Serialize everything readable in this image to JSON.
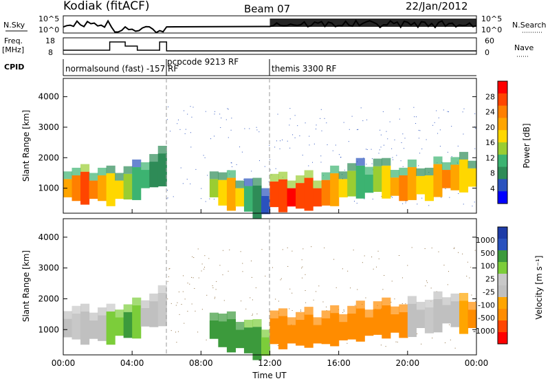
{
  "header": {
    "station": "Kodiak (fitACF)",
    "beam": "Beam 07",
    "date": "22/Jan/2012"
  },
  "strips": {
    "nsky_label": "N.Sky",
    "nsky_ticks": [
      "10^5",
      "10^0"
    ],
    "nsearch_label": "N.Search",
    "freq_label_1": "Freq.",
    "freq_label_2": "[MHz]",
    "freq_ticks": [
      "18",
      "8"
    ],
    "nave_label": "Nave",
    "nave_ticks": [
      "60",
      "0"
    ],
    "cpid_label": "CPID"
  },
  "modes": [
    {
      "label": "normalsound (fast) -157 RF",
      "start_hour": 0,
      "end_hour": 6
    },
    {
      "label": "pcpcode 9213 RF",
      "start_hour": 6,
      "end_hour": 12
    },
    {
      "label": "themis 3300 RF",
      "start_hour": 12,
      "end_hour": 24
    }
  ],
  "colors": {
    "power": [
      "#0000ff",
      "#2a52be",
      "#2e8b57",
      "#3cb371",
      "#9acd32",
      "#ffd700",
      "#ffa500",
      "#ff7f00",
      "#ff4500",
      "#ff0000"
    ],
    "velocity": [
      "#ff0000",
      "#ff4500",
      "#ff8c00",
      "#ffa500",
      "#c0c0c0",
      "#c8c8c8",
      "#7ccd3a",
      "#3c9a3c",
      "#2a52be",
      "#1e3ca8"
    ]
  },
  "chart_data": [
    {
      "type": "heatmap",
      "panel": "power",
      "ylabel": "Slant Range [km]",
      "ylim": [
        180,
        4600
      ],
      "yticks": [
        "4000",
        "3000",
        "2000",
        "1000"
      ],
      "colorbar_label": "Power [dB]",
      "colorbar_ticks": [
        "28",
        "24",
        "20",
        "16",
        "12",
        "8",
        "4"
      ],
      "colorbar_range": [
        0,
        32
      ],
      "x": [
        0,
        0.5,
        1,
        1.5,
        2,
        2.5,
        3,
        3.5,
        4,
        4.5,
        5,
        5.5,
        8.5,
        9,
        9.5,
        10,
        10.5,
        11,
        11.5,
        12,
        12.5,
        13,
        13.5,
        14,
        14.5,
        15,
        15.5,
        16,
        16.5,
        17,
        17.5,
        18,
        18.5,
        19,
        19.5,
        20,
        20.5,
        21,
        21.5,
        22,
        22.5,
        23,
        23.5
      ],
      "y_center_km": [
        1000,
        1000,
        1000,
        950,
        1000,
        950,
        950,
        1050,
        1150,
        1300,
        1450,
        1600,
        1000,
        850,
        800,
        700,
        650,
        550,
        450,
        800,
        750,
        700,
        750,
        800,
        700,
        850,
        950,
        1000,
        1150,
        1200,
        1150,
        1300,
        1200,
        1050,
        1000,
        1150,
        1100,
        1000,
        1250,
        1300,
        1350,
        1400,
        1350
      ],
      "values_db": [
        20,
        24,
        26,
        24,
        22,
        18,
        16,
        14,
        12,
        10,
        8,
        8,
        14,
        18,
        20,
        16,
        12,
        8,
        6,
        26,
        28,
        30,
        28,
        26,
        28,
        24,
        20,
        16,
        14,
        12,
        10,
        14,
        18,
        22,
        24,
        20,
        16,
        18,
        22,
        24,
        20,
        18,
        16
      ]
    },
    {
      "type": "heatmap",
      "panel": "velocity",
      "xlabel": "Time UT",
      "ylabel": "Slant Range [km]",
      "ylim": [
        180,
        4600
      ],
      "yticks": [
        "4000",
        "3000",
        "2000",
        "1000"
      ],
      "xticks": [
        "00:00",
        "04:00",
        "08:00",
        "12:00",
        "16:00",
        "20:00",
        "00:00"
      ],
      "xlim": [
        0,
        24
      ],
      "colorbar_label": "Velocity [m s⁻¹]",
      "colorbar_ticks": [
        "1000",
        "500",
        "100",
        "25",
        "-25",
        "-100",
        "-500",
        "-1000"
      ],
      "x": [
        0,
        0.5,
        1,
        1.5,
        2,
        2.5,
        3,
        3.5,
        4,
        4.5,
        5,
        5.5,
        8.5,
        9,
        9.5,
        10,
        10.5,
        11,
        11.5,
        12,
        12.5,
        13,
        13.5,
        14,
        14.5,
        15,
        15.5,
        16,
        16.5,
        17,
        17.5,
        18,
        18.5,
        19,
        19.5,
        20,
        20.5,
        21,
        21.5,
        22,
        22.5,
        23,
        23.5
      ],
      "y_center_km": [
        1050,
        1100,
        1050,
        1000,
        1050,
        1050,
        1100,
        1150,
        1250,
        1400,
        1500,
        1650,
        1000,
        850,
        800,
        700,
        650,
        550,
        450,
        950,
        900,
        850,
        900,
        950,
        850,
        950,
        1000,
        950,
        1100,
        1150,
        1100,
        1250,
        1250,
        1200,
        1150,
        1300,
        1350,
        1300,
        1450,
        1500,
        1500,
        1400,
        1350
      ],
      "values_ms": [
        0,
        10,
        0,
        -10,
        0,
        30,
        80,
        120,
        60,
        0,
        0,
        10,
        300,
        400,
        300,
        250,
        200,
        150,
        100,
        -300,
        -350,
        -400,
        -350,
        -300,
        -350,
        -300,
        -250,
        -200,
        -150,
        -150,
        -100,
        -120,
        -150,
        -200,
        -150,
        0,
        0,
        10,
        0,
        -20,
        0,
        -80,
        -150
      ]
    }
  ],
  "cpid_steps": [
    {
      "start_hour": 0,
      "end_hour": 2.7,
      "value": 11
    },
    {
      "start_hour": 2.7,
      "end_hour": 3.6,
      "value": 17
    },
    {
      "start_hour": 3.6,
      "end_hour": 4.3,
      "value": 14
    },
    {
      "start_hour": 4.3,
      "end_hour": 5.6,
      "value": 11
    },
    {
      "start_hour": 5.6,
      "end_hour": 6,
      "value": 17
    },
    {
      "start_hour": 6,
      "end_hour": 12,
      "value": 10.5
    },
    {
      "start_hour": 12,
      "end_hour": 24,
      "value": 10.5
    }
  ]
}
